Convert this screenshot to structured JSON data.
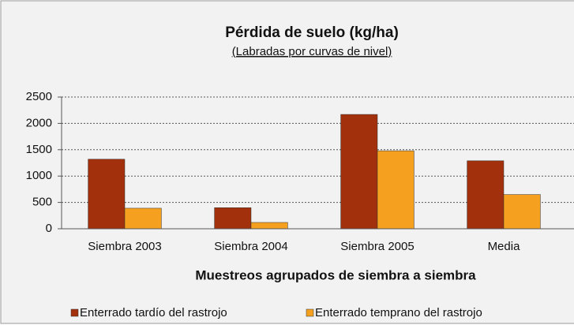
{
  "chart_data": {
    "type": "bar",
    "title": "Pérdida de suelo (kg/ha)",
    "subtitle": "(Labradas por curvas de nivel)",
    "x_label": "Muestreos agrupados de siembra a siembra",
    "categories": [
      "Siembra 2003",
      "Siembra 2004",
      "Siembra 2005",
      "Media"
    ],
    "series": [
      {
        "name": "Enterrado tardío del rastrojo",
        "color": "#a2300c",
        "values": [
          1320,
          400,
          2170,
          1290
        ]
      },
      {
        "name": "Enterrado temprano del rastrojo",
        "color": "#f5a11f",
        "values": [
          390,
          120,
          1480,
          650
        ]
      }
    ],
    "ylim": [
      0,
      2500
    ],
    "yticks": [
      0,
      500,
      1000,
      1500,
      2000,
      2500
    ],
    "grid": true
  }
}
